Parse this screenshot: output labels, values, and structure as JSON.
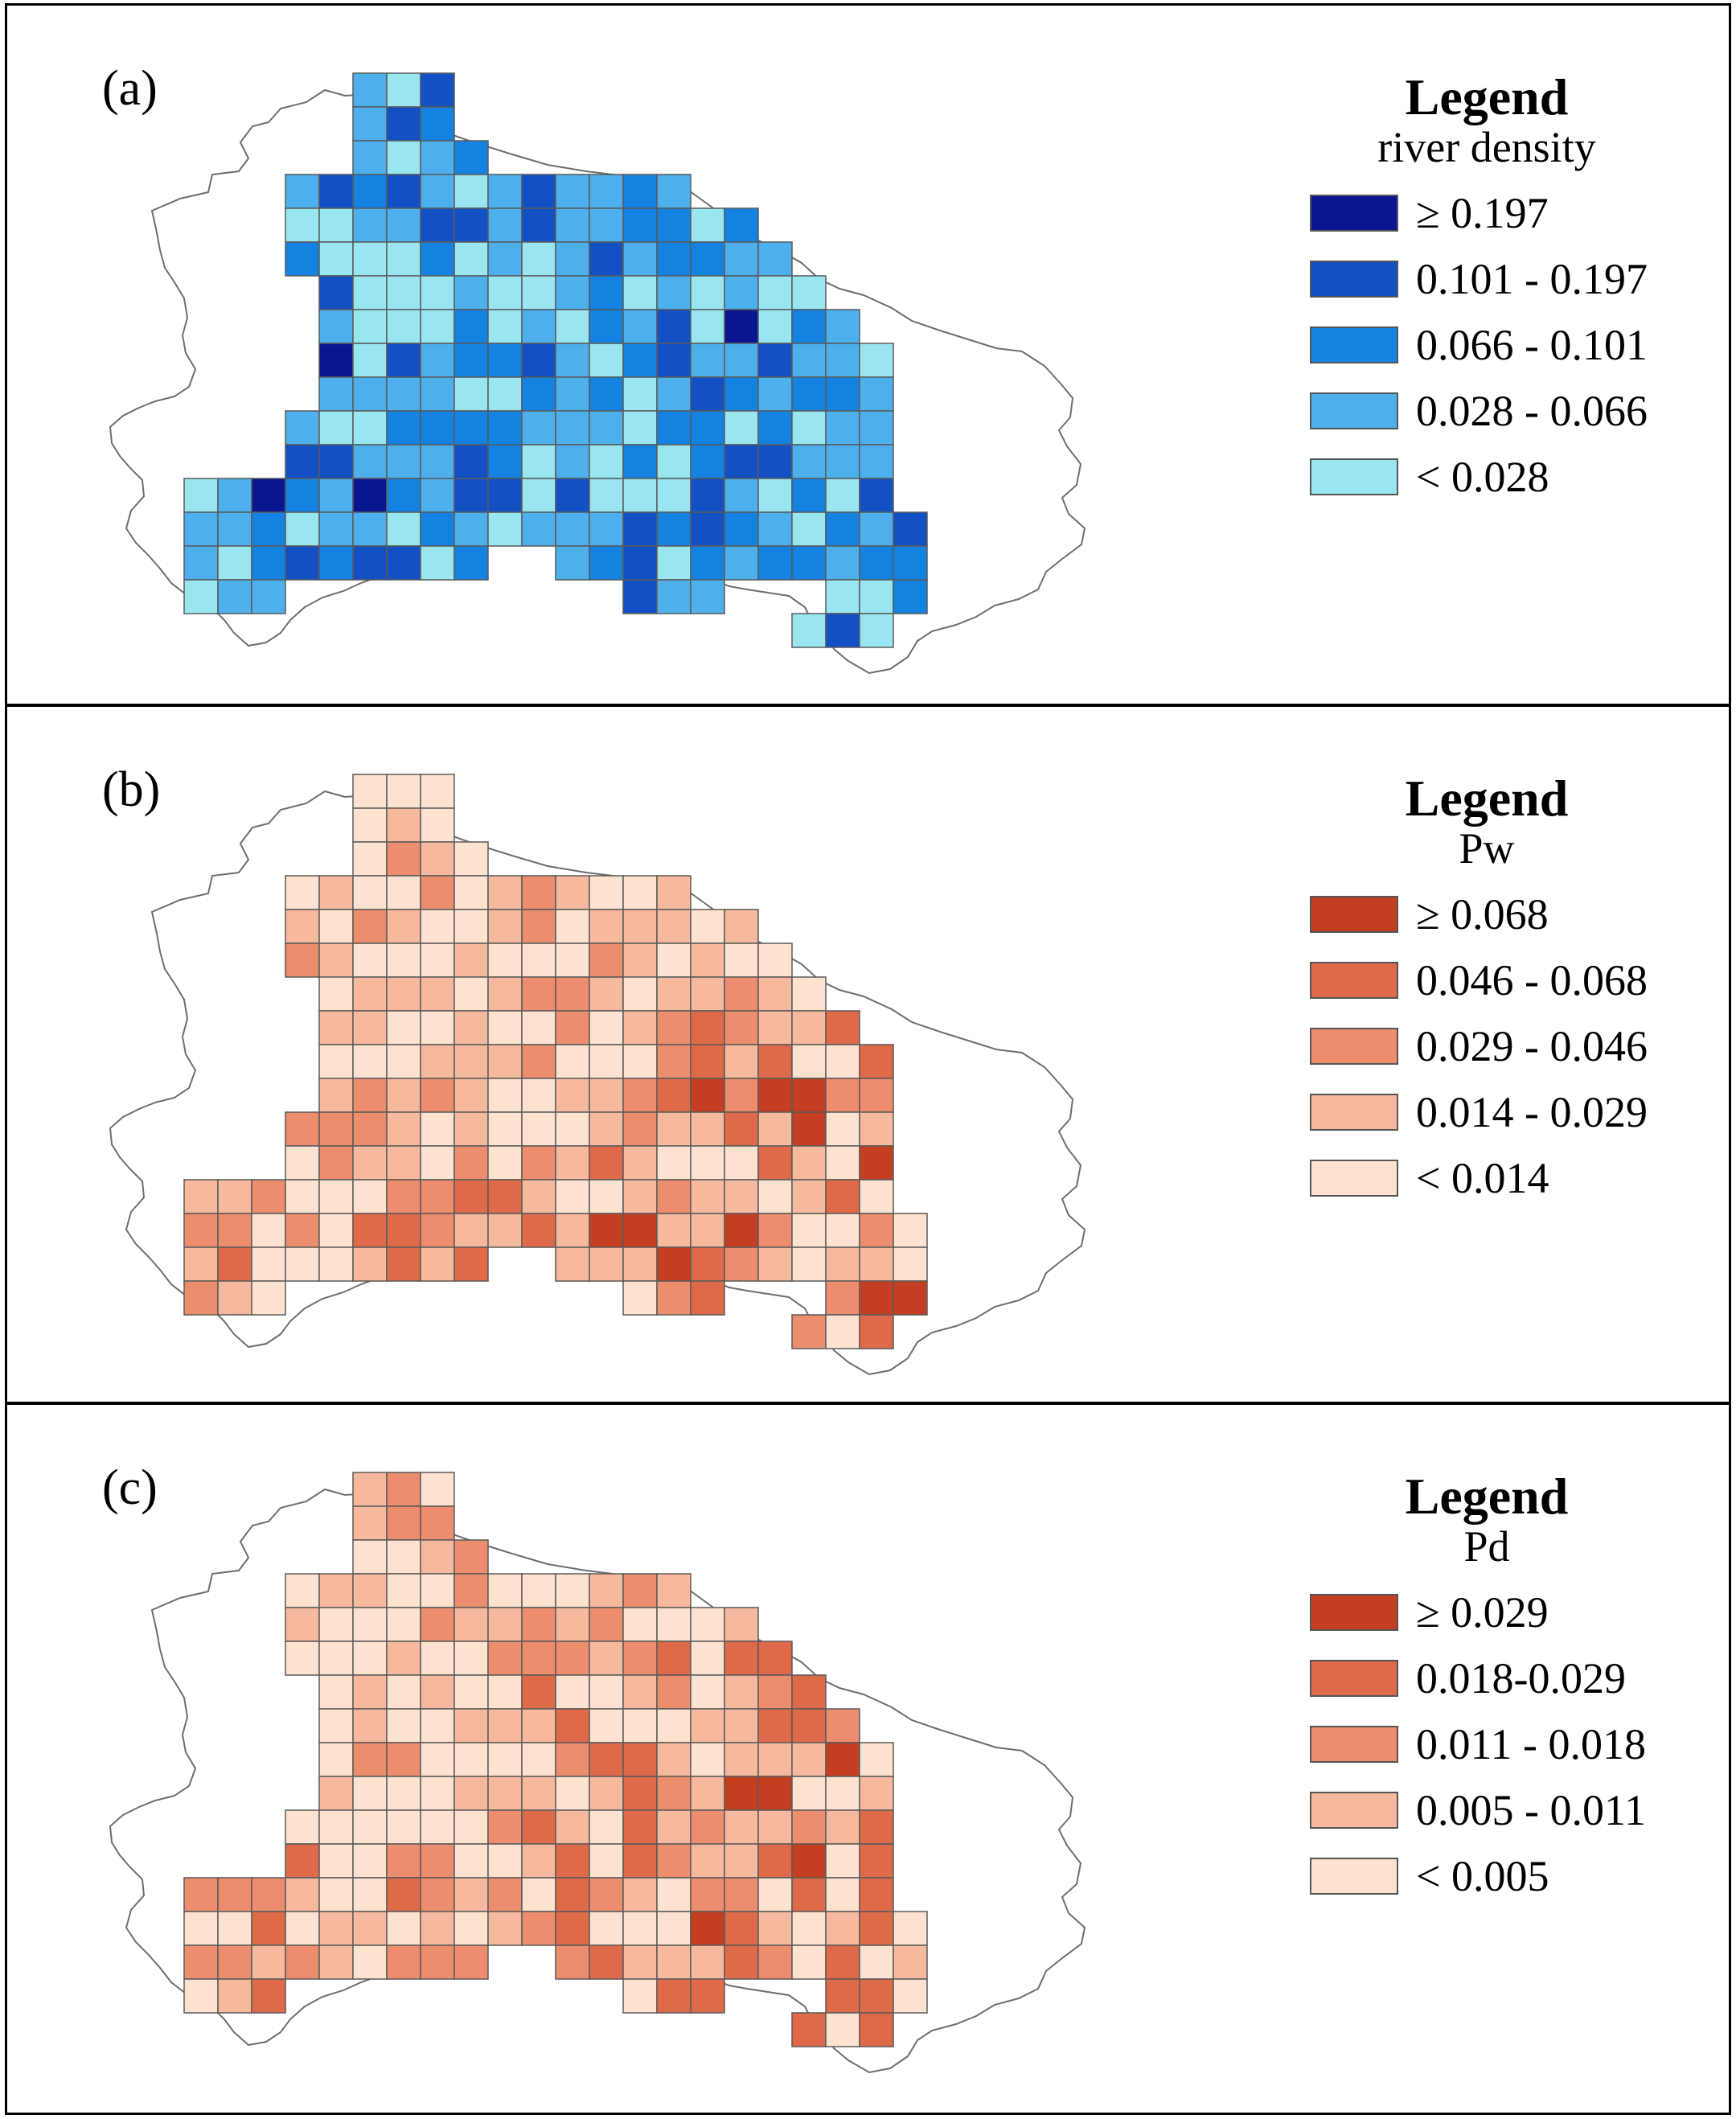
{
  "panels": [
    {
      "id": "a",
      "label": "(a)",
      "legend_title": "Legend",
      "variable": "river density",
      "classes": [
        {
          "label": "≥ 0.197",
          "color": "#0a1690"
        },
        {
          "label": "0.101 - 0.197",
          "color": "#1350c4"
        },
        {
          "label": "0.066 - 0.101",
          "color": "#1482e0"
        },
        {
          "label": "0.028 - 0.066",
          "color": "#4db0ec"
        },
        {
          "label": "< 0.028",
          "color": "#9ae6f0"
        }
      ]
    },
    {
      "id": "b",
      "label": "(b)",
      "legend_title": "Legend",
      "variable": "Pw",
      "classes": [
        {
          "label": "≥ 0.068",
          "color": "#c43f22"
        },
        {
          "label": "0.046 - 0.068",
          "color": "#de6a49"
        },
        {
          "label": "0.029 - 0.046",
          "color": "#ec8d6e"
        },
        {
          "label": "0.014 - 0.029",
          "color": "#f6b99e"
        },
        {
          "label": "< 0.014",
          "color": "#fde3cf"
        }
      ]
    },
    {
      "id": "c",
      "label": "(c)",
      "legend_title": "Legend",
      "variable": "Pd",
      "classes": [
        {
          "label": "≥ 0.029",
          "color": "#c43f22"
        },
        {
          "label": "0.018-0.029",
          "color": "#de6a49"
        },
        {
          "label": "0.011 - 0.018",
          "color": "#ec8d6e"
        },
        {
          "label": "0.005 - 0.011",
          "color": "#f6b99e"
        },
        {
          "label": "< 0.005",
          "color": "#fde3cf"
        }
      ]
    }
  ]
}
